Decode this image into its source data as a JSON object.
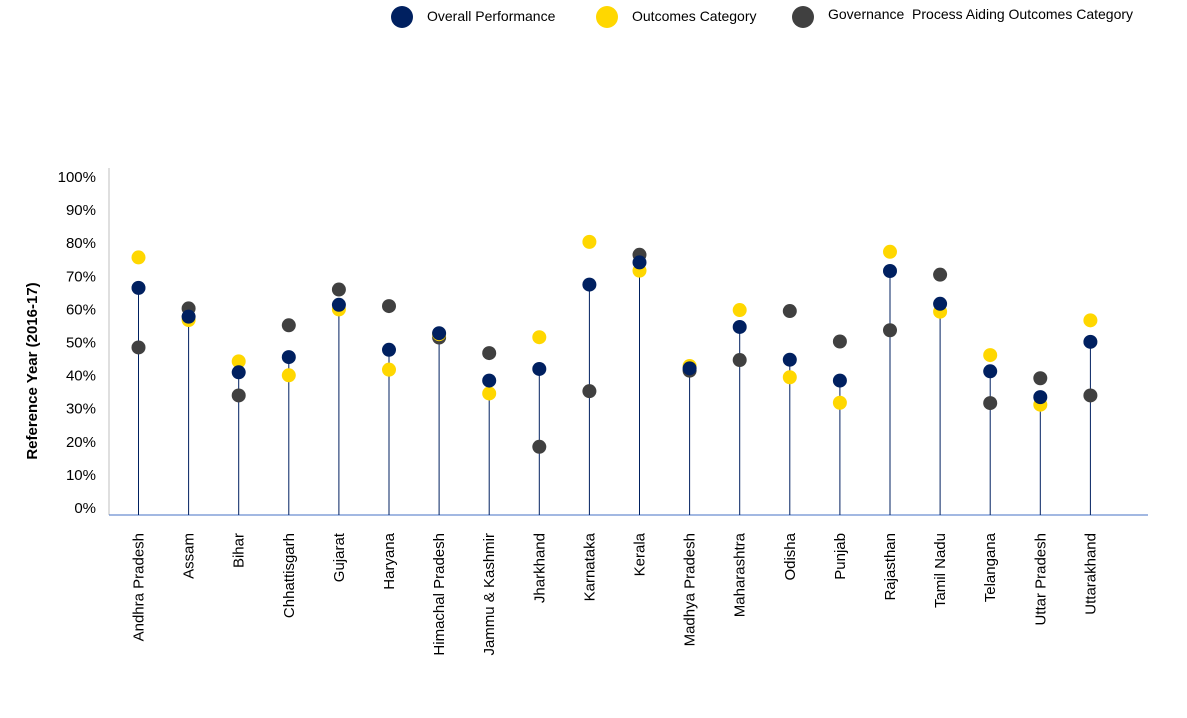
{
  "chart_data": {
    "type": "scatter",
    "title": "",
    "xlabel": "",
    "ylabel": "Reference Year (2016-17)",
    "ylim": [
      0,
      100
    ],
    "y_ticks": [
      "0%",
      "10%",
      "20%",
      "30%",
      "40%",
      "50%",
      "60%",
      "70%",
      "80%",
      "90%",
      "100%"
    ],
    "grid": false,
    "legend_position": "top",
    "stem_series": "Overall Performance",
    "categories": [
      "Andhra Pradesh",
      "Assam",
      "Bihar",
      "Chhattisgarh",
      "Gujarat",
      "Haryana",
      "Himachal Pradesh",
      "Jammu & Kashmir",
      "Jharkhand",
      "Karnataka",
      "Kerala",
      "Madhya Pradesh",
      "Maharashtra",
      "Odisha",
      "Punjab",
      "Rajasthan",
      "Tamil Nadu",
      "Telangana",
      "Uttar Pradesh",
      "Uttarakhand"
    ],
    "series": [
      {
        "name": "Governance  Process Aiding Outcomes Category",
        "color": "#404040",
        "values": [
          48.5,
          60.3,
          34,
          55.2,
          66,
          61,
          51.5,
          46.8,
          18.5,
          35.3,
          76.5,
          41.5,
          44.7,
          59.5,
          50.3,
          53.7,
          70.5,
          31.7,
          39.2,
          34
        ]
      },
      {
        "name": "Outcomes Category",
        "color": "#FFD700",
        "values": [
          75.7,
          56.8,
          44.3,
          40.1,
          60,
          41.8,
          52.5,
          34.6,
          51.6,
          80.4,
          71.7,
          42.9,
          59.8,
          39.5,
          31.8,
          77.4,
          59.3,
          46.2,
          31.2,
          56.7
        ]
      },
      {
        "name": "Overall Performance",
        "color": "#002060",
        "values": [
          66.5,
          57.8,
          41,
          45.6,
          61.4,
          47.8,
          52.8,
          38.5,
          42,
          67.5,
          74.2,
          42.2,
          54.7,
          44.8,
          38.5,
          71.6,
          61.7,
          41.3,
          33.5,
          50.2
        ]
      }
    ]
  }
}
